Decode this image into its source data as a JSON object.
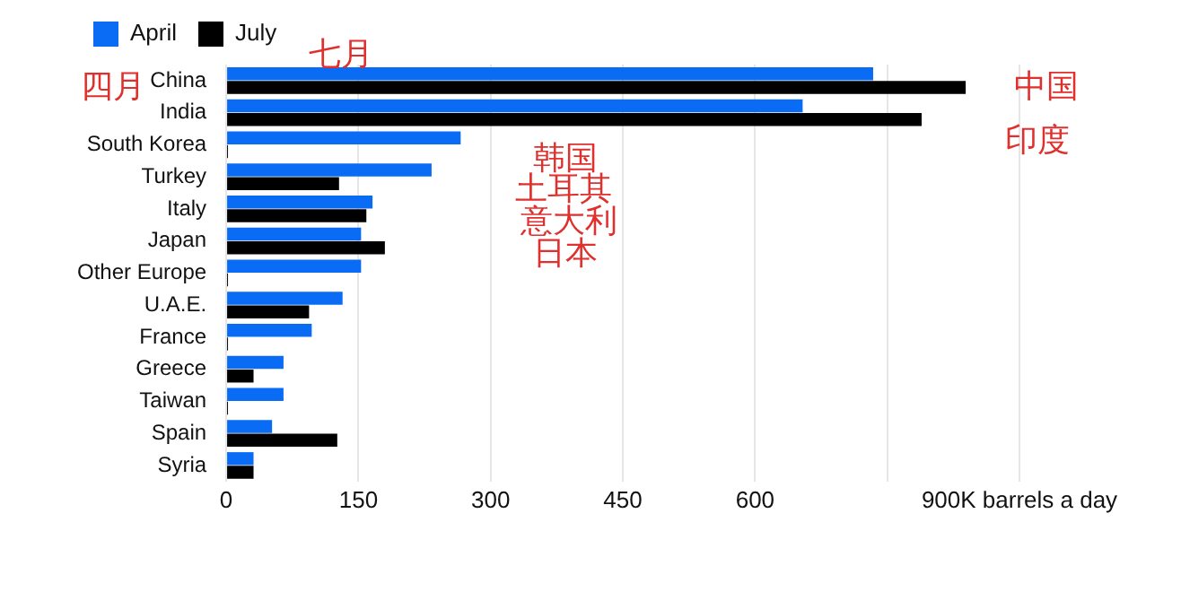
{
  "chart_data": {
    "type": "bar",
    "orientation": "horizontal",
    "categories": [
      "China",
      "India",
      "South Korea",
      "Turkey",
      "Italy",
      "Japan",
      "Other Europe",
      "U.A.E.",
      "France",
      "Greece",
      "Taiwan",
      "Spain",
      "Syria"
    ],
    "series": [
      {
        "name": "April",
        "color": "#0a6cf5",
        "values": [
          734,
          654,
          266,
          233,
          166,
          153,
          153,
          132,
          97,
          65,
          65,
          52,
          31
        ]
      },
      {
        "name": "July",
        "color": "#000000",
        "values": [
          839,
          789,
          2,
          128,
          159,
          180,
          2,
          94,
          2,
          31,
          2,
          126,
          31
        ]
      }
    ],
    "xlim": [
      0,
      900
    ],
    "xticks": [
      0,
      150,
      300,
      450,
      600,
      {
        "value": 750,
        "label": null
      },
      {
        "value": 900,
        "label": "900K barrels a day"
      }
    ],
    "grid": "x",
    "legend": "top left",
    "annotations": [
      "四月",
      "七月",
      "中国",
      "印度",
      "韩国",
      "土耳其",
      "意大利",
      "日本"
    ]
  }
}
